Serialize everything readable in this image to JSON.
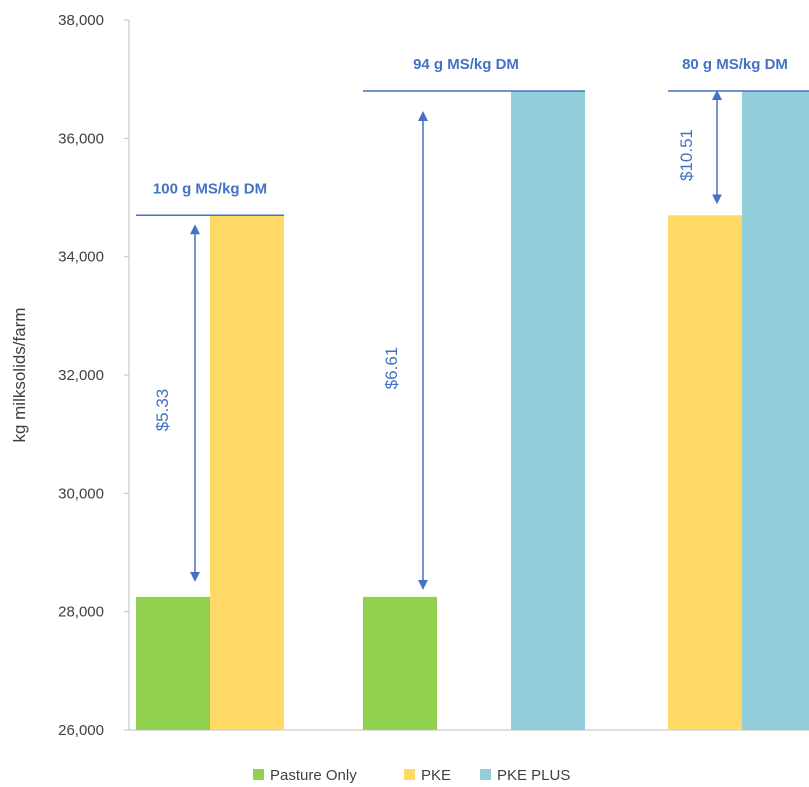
{
  "chart_data": {
    "type": "bar",
    "title": "",
    "xlabel": "",
    "ylabel": "kg milksolids/farm",
    "ylim": [
      26000,
      38000
    ],
    "yticks": [
      "26,000",
      "28,000",
      "30,000",
      "32,000",
      "34,000",
      "36,000",
      "38,000"
    ],
    "grid": false,
    "legend_position": "bottom",
    "groups": [
      {
        "bars": [
          {
            "series": "Pasture Only",
            "value": 28250
          },
          {
            "series": "PKE",
            "value": 34700
          }
        ],
        "annotation": "100 g MS/kg DM",
        "cost_label": "$5.33"
      },
      {
        "bars": [
          {
            "series": "Pasture Only",
            "value": 28250
          },
          {
            "series": "PKE PLUS",
            "value": 36800
          }
        ],
        "annotation": "94 g MS/kg DM",
        "cost_label": "$6.61"
      },
      {
        "bars": [
          {
            "series": "PKE",
            "value": 34700
          },
          {
            "series": "PKE PLUS",
            "value": 36800
          }
        ],
        "annotation": "80 g MS/kg DM",
        "cost_label": "$10.51"
      }
    ],
    "series": [
      {
        "name": "Pasture Only",
        "color": "#92d050"
      },
      {
        "name": "PKE",
        "color": "#ffd966"
      },
      {
        "name": "PKE PLUS",
        "color": "#92cddc"
      }
    ],
    "annotation_color": "#4472c4"
  }
}
